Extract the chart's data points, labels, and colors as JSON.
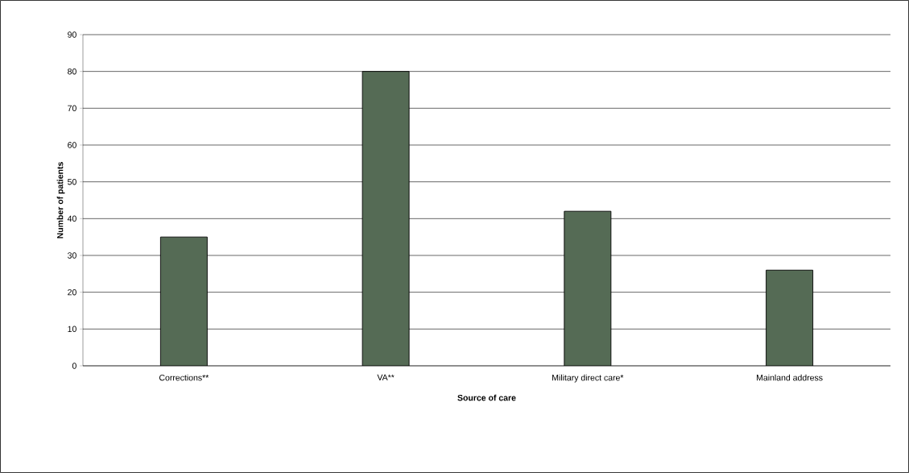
{
  "chart_data": {
    "type": "bar",
    "xlabel": "Source of care",
    "ylabel": "Number of patients",
    "categories": [
      "Corrections**",
      "VA**",
      "Military direct care*",
      "Mainland address"
    ],
    "values": [
      35,
      80,
      42,
      26
    ],
    "color": "#556b55",
    "ylim": [
      0,
      90
    ],
    "yticks": [
      0,
      10,
      20,
      30,
      40,
      50,
      60,
      70,
      80,
      90
    ],
    "grid": "y"
  }
}
